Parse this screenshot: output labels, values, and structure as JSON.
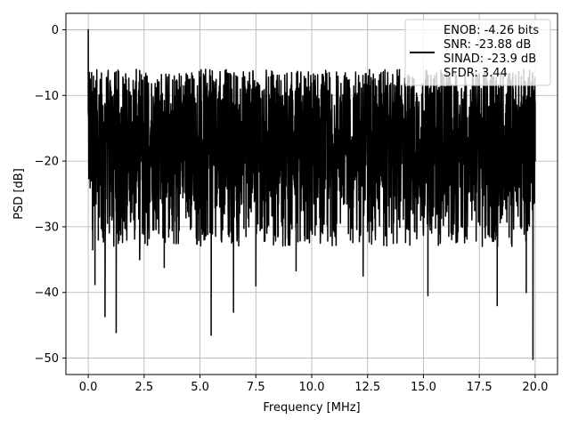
{
  "chart_data": {
    "type": "line",
    "title": "",
    "xlabel": "Frequency [MHz]",
    "ylabel": "PSD [dB]",
    "xlim": [
      -1.0,
      21.0
    ],
    "ylim": [
      -52.5,
      2.5
    ],
    "x_ticks": [
      0.0,
      2.5,
      5.0,
      7.5,
      10.0,
      12.5,
      15.0,
      17.5,
      20.0
    ],
    "x_tick_labels": [
      "0.0",
      "2.5",
      "5.0",
      "7.5",
      "10.0",
      "12.5",
      "15.0",
      "17.5",
      "20.0"
    ],
    "y_ticks": [
      0,
      -10,
      -20,
      -30,
      -40,
      -50
    ],
    "y_tick_labels": [
      "0",
      "−10",
      "−20",
      "−30",
      "−40",
      "−50"
    ],
    "grid": true,
    "legend_position": "top-right",
    "legend_entries": [
      "ENOB: -4.26 bits",
      "SNR: -23.88 dB",
      "SINAD: -23.9 dB",
      "SFDR: 3.44"
    ],
    "series": [
      {
        "color": "#000000",
        "x": [
          0.0,
          0.05,
          0.1,
          0.2,
          0.3,
          0.45,
          0.6,
          0.75,
          1.25,
          2.3,
          3.4,
          5.5,
          6.5,
          7.5,
          9.3,
          12.3,
          15.2,
          18.3,
          19.6,
          19.9,
          20.0
        ],
        "y": [
          0.0,
          -6.5,
          -21.0,
          -33.5,
          -38.8,
          -32.0,
          -25.0,
          -43.7,
          -46.1,
          -35.0,
          -36.2,
          -46.5,
          -43.0,
          -39.0,
          -36.7,
          -37.5,
          -40.5,
          -42.0,
          -40.0,
          -50.2,
          -20.0
        ],
        "noise_floor_min": -27.0,
        "noise_floor_max": -6.0
      }
    ]
  }
}
